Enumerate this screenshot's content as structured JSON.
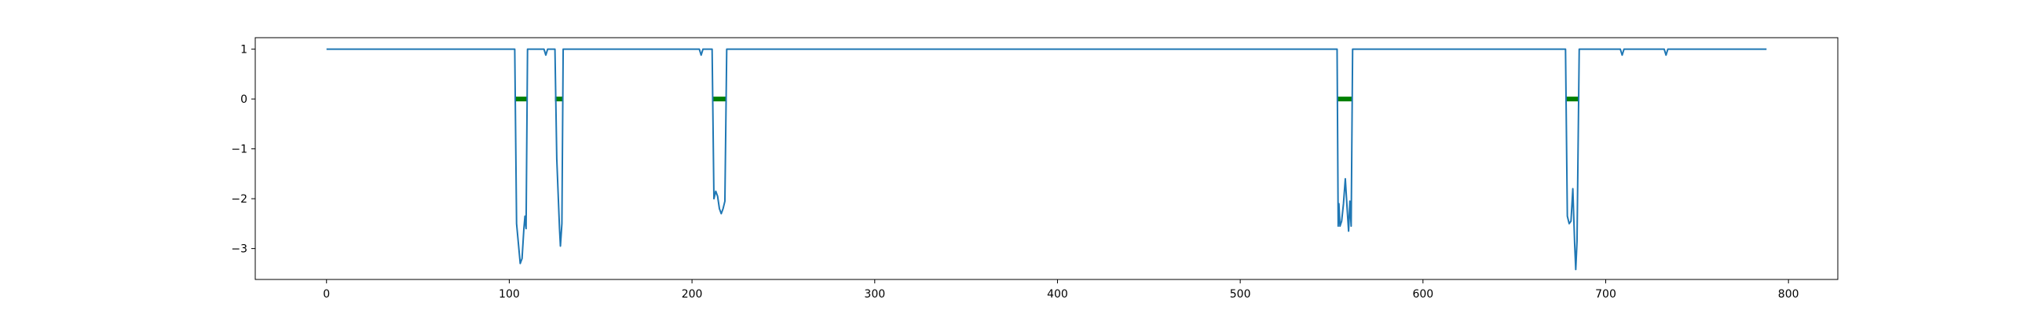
{
  "chart_data": {
    "type": "line",
    "title": "",
    "xlabel": "",
    "ylabel": "",
    "xlim": [
      -39,
      827
    ],
    "ylim": [
      -3.62,
      1.23
    ],
    "grid": false,
    "legend": "none",
    "x_ticks": [
      0,
      100,
      200,
      300,
      400,
      500,
      600,
      700,
      800
    ],
    "x_tick_labels": [
      "0",
      "100",
      "200",
      "300",
      "400",
      "500",
      "600",
      "700",
      "800"
    ],
    "y_ticks": [
      1,
      0,
      -1,
      -2,
      -3
    ],
    "y_tick_labels": [
      "1",
      "0",
      "−1",
      "−2",
      "−3"
    ],
    "series": [
      {
        "color": "#1f77b4",
        "points": [
          [
            0,
            1
          ],
          [
            103,
            1
          ],
          [
            104,
            -2.5
          ],
          [
            106,
            -3.3
          ],
          [
            107,
            -3.2
          ],
          [
            108,
            -2.6
          ],
          [
            108.6,
            -2.35
          ],
          [
            109.2,
            -2.6
          ],
          [
            110,
            1
          ],
          [
            119,
            1
          ],
          [
            120,
            0.88
          ],
          [
            121,
            1
          ],
          [
            125,
            1
          ],
          [
            126,
            -1.2
          ],
          [
            127.5,
            -2.6
          ],
          [
            128,
            -2.95
          ],
          [
            128.8,
            -2.5
          ],
          [
            129.5,
            1
          ],
          [
            204,
            1
          ],
          [
            205,
            0.88
          ],
          [
            206,
            1
          ],
          [
            211,
            1
          ],
          [
            212,
            -2.0
          ],
          [
            213,
            -1.85
          ],
          [
            214,
            -1.95
          ],
          [
            215,
            -2.2
          ],
          [
            216,
            -2.3
          ],
          [
            217,
            -2.2
          ],
          [
            218,
            -2.05
          ],
          [
            219,
            1
          ],
          [
            553,
            1
          ],
          [
            553.6,
            -2.55
          ],
          [
            554,
            -2.1
          ],
          [
            554.6,
            -2.55
          ],
          [
            555.5,
            -2.45
          ],
          [
            556.5,
            -2.1
          ],
          [
            557.5,
            -1.6
          ],
          [
            558.5,
            -2.2
          ],
          [
            559.3,
            -2.65
          ],
          [
            560,
            -2.05
          ],
          [
            560.7,
            -2.55
          ],
          [
            561.5,
            1
          ],
          [
            678,
            1
          ],
          [
            679,
            -2.35
          ],
          [
            680,
            -2.5
          ],
          [
            681,
            -2.45
          ],
          [
            682,
            -1.8
          ],
          [
            683,
            -2.9
          ],
          [
            683.6,
            -3.42
          ],
          [
            684.3,
            -2.85
          ],
          [
            685.5,
            1
          ],
          [
            708,
            1
          ],
          [
            709,
            0.88
          ],
          [
            710,
            1
          ],
          [
            732,
            1
          ],
          [
            733,
            0.88
          ],
          [
            734,
            1
          ],
          [
            788,
            1
          ]
        ]
      },
      {
        "color": "#008000",
        "segments": [
          [
            103,
            110,
            0
          ],
          [
            125,
            129.5,
            0
          ],
          [
            211,
            219,
            0
          ],
          [
            553,
            561.5,
            0
          ],
          [
            678,
            685.5,
            0
          ]
        ]
      }
    ]
  }
}
